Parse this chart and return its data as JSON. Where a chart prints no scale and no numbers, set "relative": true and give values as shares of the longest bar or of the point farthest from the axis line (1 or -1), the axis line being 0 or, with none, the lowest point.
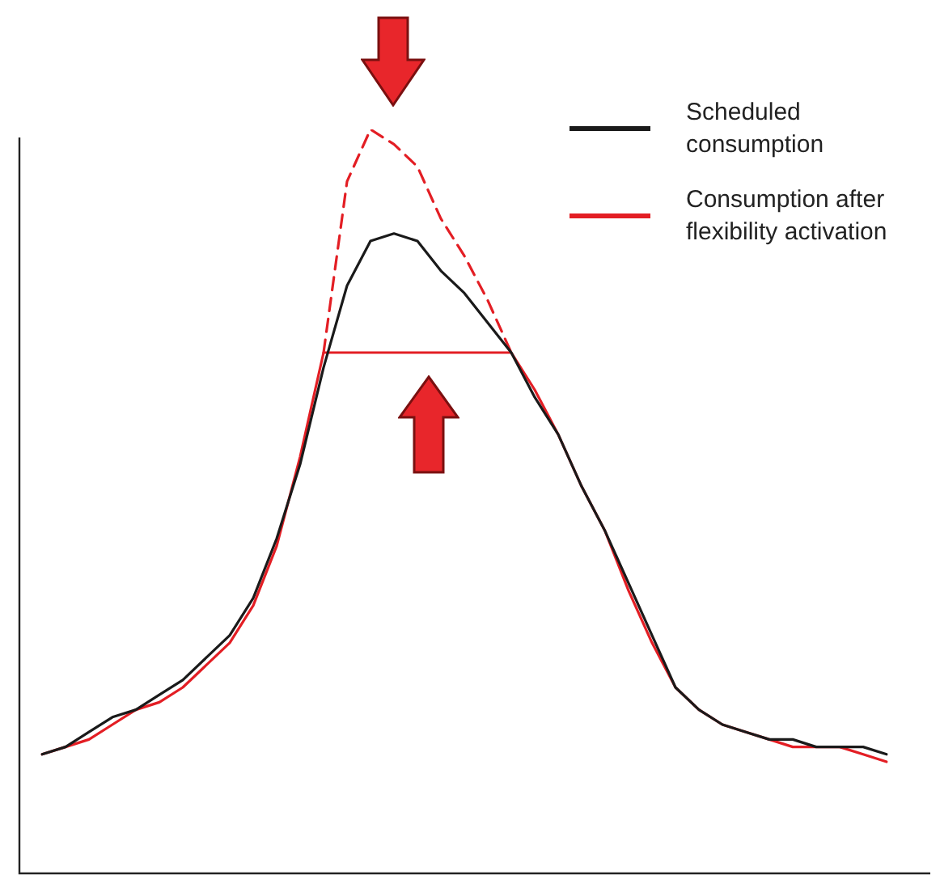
{
  "chart_data": {
    "type": "line",
    "relative": true,
    "legend": "top right",
    "marker": "none",
    "categories": [
      null,
      null,
      null,
      null,
      null,
      null,
      null,
      null,
      null,
      null,
      null,
      null,
      null,
      null,
      null,
      null,
      null,
      null,
      null,
      null,
      null,
      null,
      null,
      null,
      null,
      null,
      null,
      null,
      null,
      null,
      null,
      null,
      null,
      null,
      null,
      null,
      null
    ],
    "series": [
      {
        "name": "Scheduled consumption",
        "color": "#1a1a1a",
        "values": [
          0.16,
          0.17,
          0.19,
          0.21,
          0.22,
          0.24,
          0.26,
          0.29,
          0.32,
          0.37,
          0.45,
          0.55,
          0.68,
          0.79,
          0.85,
          0.86,
          0.85,
          0.81,
          0.78,
          0.74,
          0.7,
          0.64,
          0.59,
          0.52,
          0.46,
          0.39,
          0.32,
          0.25,
          0.22,
          0.2,
          0.19,
          0.18,
          0.18,
          0.17,
          0.17,
          0.17,
          0.16
        ]
      },
      {
        "name": "Consumption after flexibility activation",
        "color": "#e31e24",
        "values": [
          0.16,
          0.17,
          0.18,
          0.2,
          0.22,
          0.23,
          0.25,
          0.28,
          0.31,
          0.36,
          0.44,
          0.56,
          0.7,
          0.7,
          0.7,
          0.7,
          0.7,
          0.7,
          0.7,
          0.7,
          0.7,
          0.65,
          0.59,
          0.52,
          0.46,
          0.38,
          0.31,
          0.25,
          0.22,
          0.2,
          0.19,
          0.18,
          0.17,
          0.17,
          0.17,
          0.16,
          0.15
        ]
      },
      {
        "color": "#e31e24",
        "line_style": "dashed",
        "values": [
          null,
          null,
          null,
          null,
          null,
          null,
          null,
          null,
          null,
          null,
          null,
          null,
          0.7,
          0.93,
          1.0,
          0.98,
          0.95,
          0.88,
          0.83,
          0.77,
          0.7,
          null,
          null,
          null,
          null,
          null,
          null,
          null,
          null,
          null,
          null,
          null,
          null,
          null,
          null,
          null,
          null
        ]
      }
    ]
  }
}
